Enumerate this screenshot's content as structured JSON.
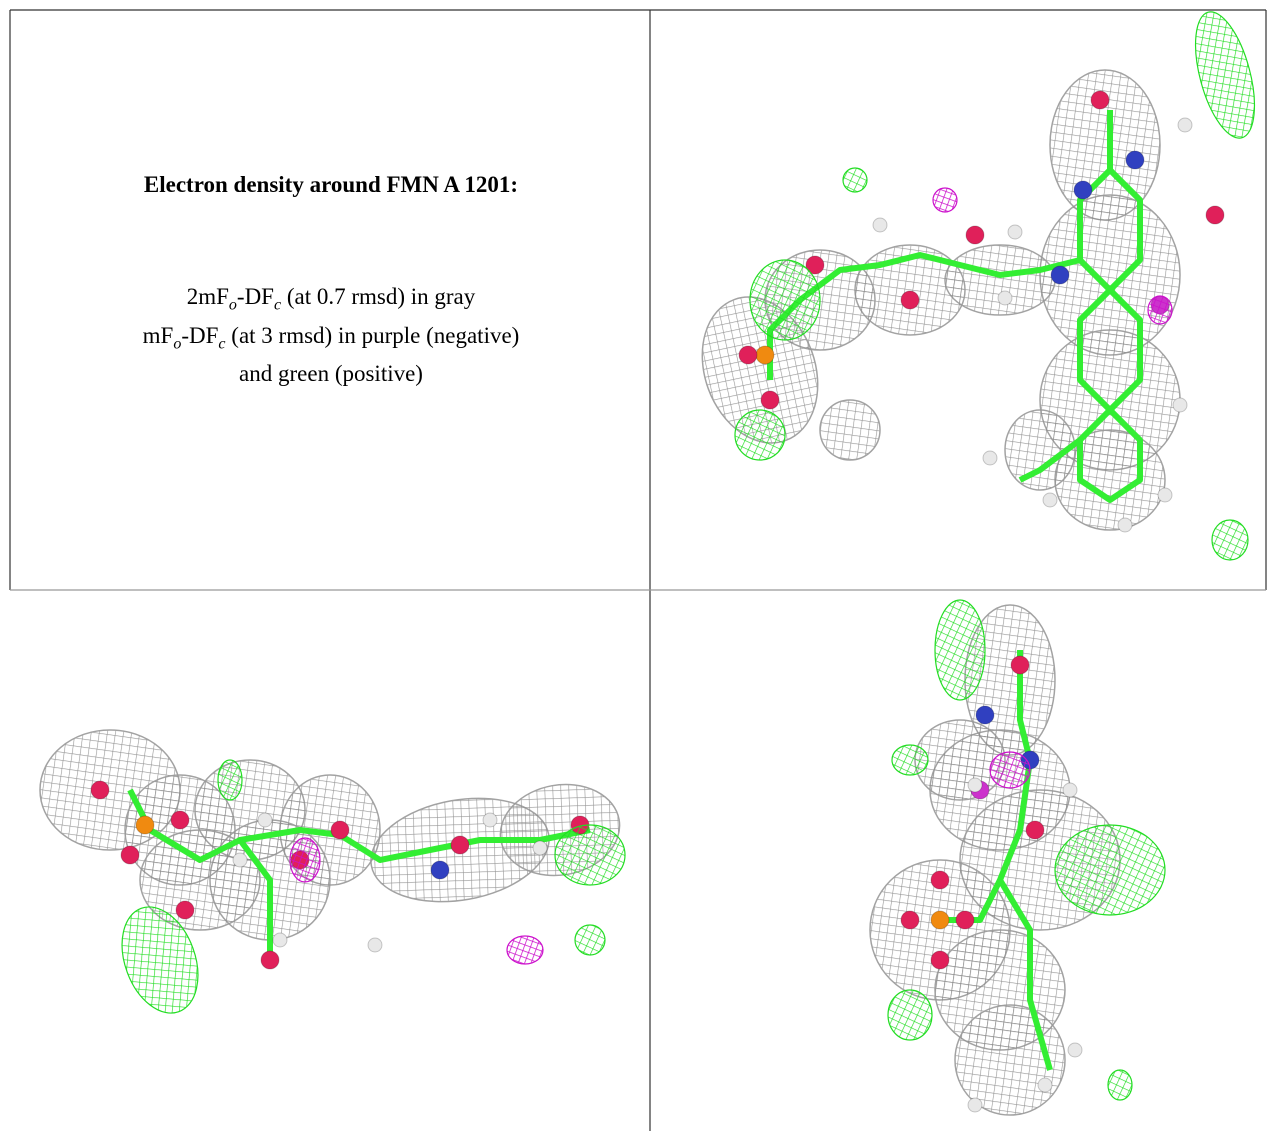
{
  "caption": {
    "title": "Electron density around FMN A 1201:",
    "lines": [
      [
        "2mF",
        "o",
        "-DF",
        "c",
        " (at 0.7 rmsd) in gray"
      ],
      [
        "mF",
        "o",
        "-DF",
        "c",
        " (at 3 rmsd) in purple (negative)"
      ],
      [
        "and green (positive)"
      ]
    ]
  }
}
